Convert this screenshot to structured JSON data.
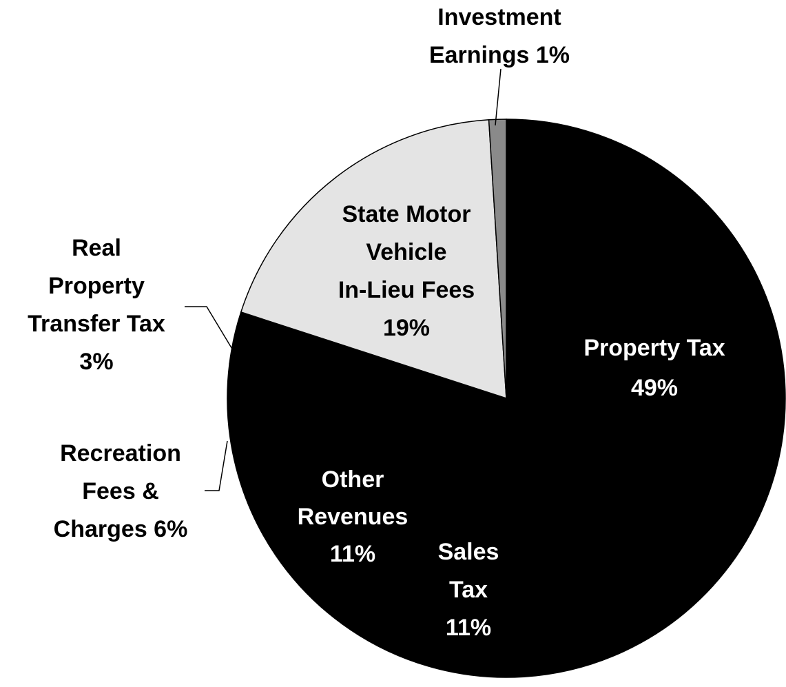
{
  "chart_data": {
    "type": "pie",
    "labels": [
      [
        "Property Tax",
        "49%"
      ],
      [
        "Sales",
        "Tax",
        "11%"
      ],
      [
        "Other",
        "Revenues",
        "11%"
      ],
      [
        "Recreation",
        "Fees &",
        "Charges 6%"
      ],
      [
        "Real",
        "Property",
        "Transfer Tax",
        "3%"
      ],
      [
        "State Motor",
        "Vehicle",
        "In-Lieu Fees",
        "19%"
      ],
      [
        "Investment",
        "Earnings 1%"
      ]
    ],
    "values": [
      49,
      11,
      11,
      6,
      3,
      19,
      1
    ],
    "colors": [
      "#000000",
      "#000000",
      "#000000",
      "#000000",
      "#000000",
      "#e4e4e4",
      "#8a8a8a"
    ]
  }
}
